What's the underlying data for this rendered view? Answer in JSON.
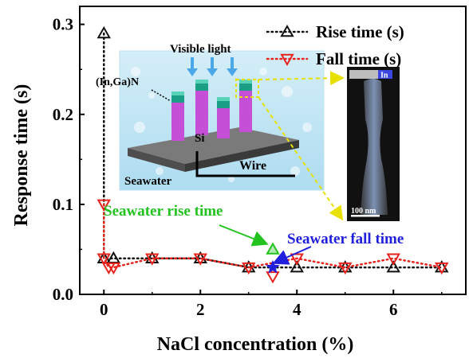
{
  "chart_data": {
    "type": "line",
    "xlabel": "NaCl concentration (%)",
    "ylabel": "Response time (s)",
    "xlim": [
      -0.5,
      7.5
    ],
    "ylim": [
      0.0,
      0.32
    ],
    "x_ticks": [
      "0",
      "2",
      "4",
      "6"
    ],
    "y_ticks": [
      "0.0",
      "0.1",
      "0.2",
      "0.3"
    ],
    "grid": false,
    "legend_position": "top-right",
    "series": [
      {
        "name": "Rise time (s)",
        "marker": "triangle-up",
        "color": "#111111",
        "x": [
          0,
          0,
          0.2,
          1,
          2,
          3,
          4,
          5,
          6,
          7
        ],
        "y": [
          0.29,
          0.04,
          0.04,
          0.04,
          0.04,
          0.03,
          0.03,
          0.03,
          0.03,
          0.03
        ]
      },
      {
        "name": "Fall time (s)",
        "marker": "triangle-down",
        "color": "#e8231c",
        "x": [
          0,
          0,
          0.1,
          0.2,
          1,
          2,
          3,
          4,
          5,
          6,
          7
        ],
        "y": [
          0.1,
          0.04,
          0.03,
          0.03,
          0.04,
          0.04,
          0.03,
          0.04,
          0.03,
          0.04,
          0.03
        ]
      }
    ],
    "highlight_points": [
      {
        "label": "Seawater rise time",
        "x": 3.5,
        "y": 0.05,
        "marker": "triangle-up",
        "color": "#22c21f"
      },
      {
        "label": "Seawater fall time",
        "x": 3.5,
        "y": 0.03,
        "marker": "star",
        "color": "#1f1fdc"
      }
    ],
    "extra_point": {
      "x": 3.5,
      "y": 0.02,
      "marker": "triangle-down",
      "color": "#e8231c"
    }
  },
  "inset": {
    "labels": {
      "light": "Visible light",
      "material": "(In,Ga)N",
      "substrate": "Si",
      "wire": "Wire",
      "medium": "Seawater"
    },
    "tem": {
      "element": "In",
      "scale": "100 nm"
    }
  }
}
